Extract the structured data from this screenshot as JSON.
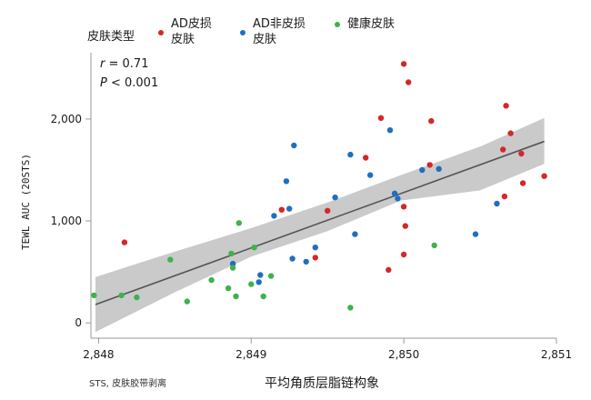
{
  "legend": {
    "title": "皮肤类型",
    "items": [
      {
        "label": "AD皮损皮肤",
        "color": "#d62728"
      },
      {
        "label": "AD非皮损皮肤",
        "color": "#1f6fbf"
      },
      {
        "label": "健康皮肤",
        "color": "#3cb44b"
      }
    ]
  },
  "stats": {
    "r_symbol": "r",
    "r_value": " = 0.71",
    "p_symbol": "P",
    "p_value": " < 0.001"
  },
  "footnote": "STS, 皮肤胶带剥离",
  "chart_data": {
    "type": "scatter",
    "xlabel": "平均角质层脂链构象",
    "ylabel": "TEWL AUC (20STS)",
    "x_ticks": [
      "2,848",
      "2,849",
      "2,850",
      "2,851"
    ],
    "y_ticks": [
      "0",
      "1,000",
      "2,000"
    ],
    "xlim": [
      2847.95,
      2851.0
    ],
    "ylim": [
      -150,
      2650
    ],
    "trend_line": {
      "x": [
        2847.98,
        2850.92
      ],
      "y": [
        180,
        1780
      ]
    },
    "confidence_band": {
      "upper": [
        [
          2847.98,
          450
        ],
        [
          2848.5,
          700
        ],
        [
          2849.0,
          930
        ],
        [
          2849.5,
          1180
        ],
        [
          2849.98,
          1450
        ],
        [
          2850.5,
          1730
        ],
        [
          2850.92,
          2010
        ]
      ],
      "lower": [
        [
          2847.98,
          -90
        ],
        [
          2848.5,
          300
        ],
        [
          2849.0,
          650
        ],
        [
          2849.5,
          900
        ],
        [
          2849.98,
          1200
        ],
        [
          2850.5,
          1300
        ],
        [
          2850.92,
          1560
        ]
      ]
    },
    "series": [
      {
        "name": "AD皮损皮肤",
        "color": "#d62728",
        "points": [
          [
            2848.17,
            790
          ],
          [
            2849.2,
            1110
          ],
          [
            2849.42,
            640
          ],
          [
            2849.5,
            1100
          ],
          [
            2849.75,
            1620
          ],
          [
            2849.85,
            2010
          ],
          [
            2849.9,
            520
          ],
          [
            2850.0,
            2540
          ],
          [
            2850.03,
            2360
          ],
          [
            2850.0,
            1140
          ],
          [
            2850.01,
            950
          ],
          [
            2850.0,
            670
          ],
          [
            2850.17,
            1550
          ],
          [
            2850.18,
            1980
          ],
          [
            2850.65,
            1700
          ],
          [
            2850.66,
            1240
          ],
          [
            2850.67,
            2130
          ],
          [
            2850.7,
            1860
          ],
          [
            2850.77,
            1660
          ],
          [
            2850.78,
            1370
          ],
          [
            2850.92,
            1440
          ]
        ]
      },
      {
        "name": "AD非皮损皮肤",
        "color": "#1f6fbf",
        "points": [
          [
            2848.88,
            580
          ],
          [
            2849.05,
            400
          ],
          [
            2849.06,
            470
          ],
          [
            2849.15,
            1050
          ],
          [
            2849.23,
            1390
          ],
          [
            2849.25,
            1120
          ],
          [
            2849.27,
            630
          ],
          [
            2849.28,
            1740
          ],
          [
            2849.36,
            600
          ],
          [
            2849.42,
            740
          ],
          [
            2849.55,
            1230
          ],
          [
            2849.65,
            1650
          ],
          [
            2849.68,
            870
          ],
          [
            2849.78,
            1450
          ],
          [
            2849.91,
            1890
          ],
          [
            2849.94,
            1270
          ],
          [
            2849.96,
            1220
          ],
          [
            2850.12,
            1500
          ],
          [
            2850.23,
            1510
          ],
          [
            2850.47,
            870
          ],
          [
            2850.61,
            1170
          ]
        ]
      },
      {
        "name": "健康皮肤",
        "color": "#3cb44b",
        "points": [
          [
            2847.97,
            270
          ],
          [
            2848.15,
            270
          ],
          [
            2848.25,
            250
          ],
          [
            2848.47,
            620
          ],
          [
            2848.58,
            210
          ],
          [
            2848.74,
            420
          ],
          [
            2848.85,
            340
          ],
          [
            2848.87,
            680
          ],
          [
            2848.88,
            540
          ],
          [
            2848.9,
            260
          ],
          [
            2848.92,
            980
          ],
          [
            2849.0,
            380
          ],
          [
            2849.02,
            740
          ],
          [
            2849.08,
            260
          ],
          [
            2849.13,
            460
          ],
          [
            2849.65,
            150
          ],
          [
            2850.2,
            760
          ]
        ]
      }
    ]
  }
}
